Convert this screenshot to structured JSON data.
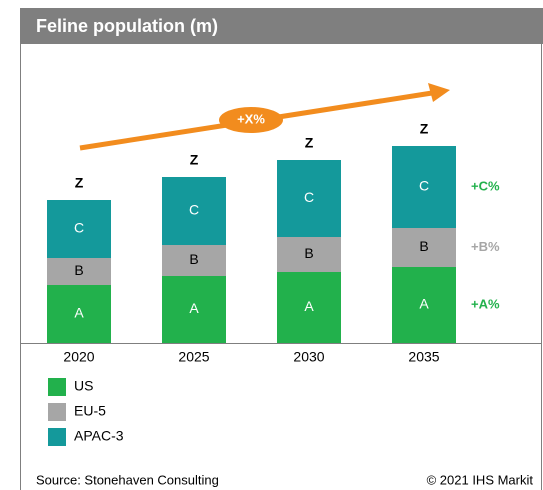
{
  "chart_data": {
    "type": "stacked_bar",
    "title": "Feline population (m)",
    "categories": [
      "2020",
      "2025",
      "2030",
      "2035"
    ],
    "series": [
      {
        "name": "US",
        "color": "#22b14c",
        "label_color": "#ffffff",
        "values": [
          58,
          67,
          71,
          76
        ],
        "value_labels": [
          "A",
          "A",
          "A",
          "A"
        ]
      },
      {
        "name": "EU-5",
        "color": "#a6a6a6",
        "label_color": "#000000",
        "values": [
          27,
          31,
          35,
          39
        ],
        "value_labels": [
          "B",
          "B",
          "B",
          "B"
        ]
      },
      {
        "name": "APAC-3",
        "color": "#14999b",
        "label_color": "#ffffff",
        "values": [
          58,
          68,
          77,
          82
        ],
        "value_labels": [
          "C",
          "C",
          "C",
          "C"
        ]
      }
    ],
    "total_labels": [
      "Z",
      "Z",
      "Z",
      "Z"
    ],
    "growth_labels": [
      {
        "label": "+A%",
        "color": "#22b14c"
      },
      {
        "label": "+B%",
        "color": "#a6a6a6"
      },
      {
        "label": "+C%",
        "color": "#22b14c"
      }
    ],
    "trend_label": "+X%",
    "trend_color": "#f28c1e",
    "ylim": [
      0,
      290
    ],
    "source": "Source: Stonehaven Consulting",
    "copyright": "© 2021 IHS Markit"
  }
}
